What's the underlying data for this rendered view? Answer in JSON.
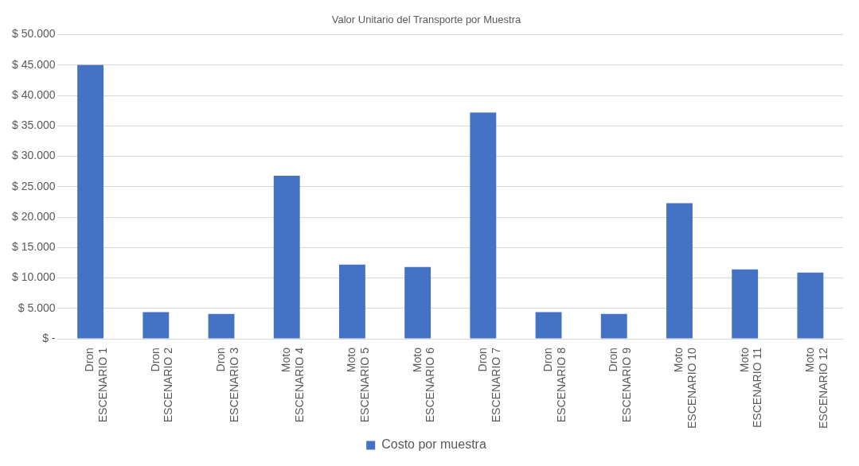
{
  "chart_data": {
    "type": "bar",
    "title": "Valor Unitario del Transporte por Muestra",
    "categories": [
      "Dron ESCENARIO 1",
      "Dron ESCENARIO 2",
      "Dron ESCENARIO 3",
      "Moto ESCENARIO 4",
      "Moto ESCENARIO 5",
      "Moto ESCENARIO 6",
      "Dron ESCENARIO 7",
      "Dron ESCENARIO 8",
      "Dron ESCENARIO 9",
      "Moto ESCENARIO 10",
      "Moto ESCENARIO 11",
      "Moto ESCENARIO 12"
    ],
    "series": [
      {
        "name": "Costo por muestra",
        "color": "#4472c4",
        "values": [
          45000,
          4400,
          4100,
          26800,
          12200,
          11800,
          37200,
          4400,
          4100,
          22300,
          11400,
          10900
        ]
      }
    ],
    "ylim": [
      0,
      50000
    ],
    "yticks": [
      {
        "value": 0,
        "label": "$ -"
      },
      {
        "value": 5000,
        "label": "$ 5.000"
      },
      {
        "value": 10000,
        "label": "$ 10.000"
      },
      {
        "value": 15000,
        "label": "$ 15.000"
      },
      {
        "value": 20000,
        "label": "$ 20.000"
      },
      {
        "value": 25000,
        "label": "$ 25.000"
      },
      {
        "value": 30000,
        "label": "$ 30.000"
      },
      {
        "value": 35000,
        "label": "$ 35.000"
      },
      {
        "value": 40000,
        "label": "$ 40.000"
      },
      {
        "value": 45000,
        "label": "$ 45.000"
      },
      {
        "value": 50000,
        "label": "$ 50.000"
      }
    ],
    "grid": "y",
    "legend": "bottom"
  }
}
